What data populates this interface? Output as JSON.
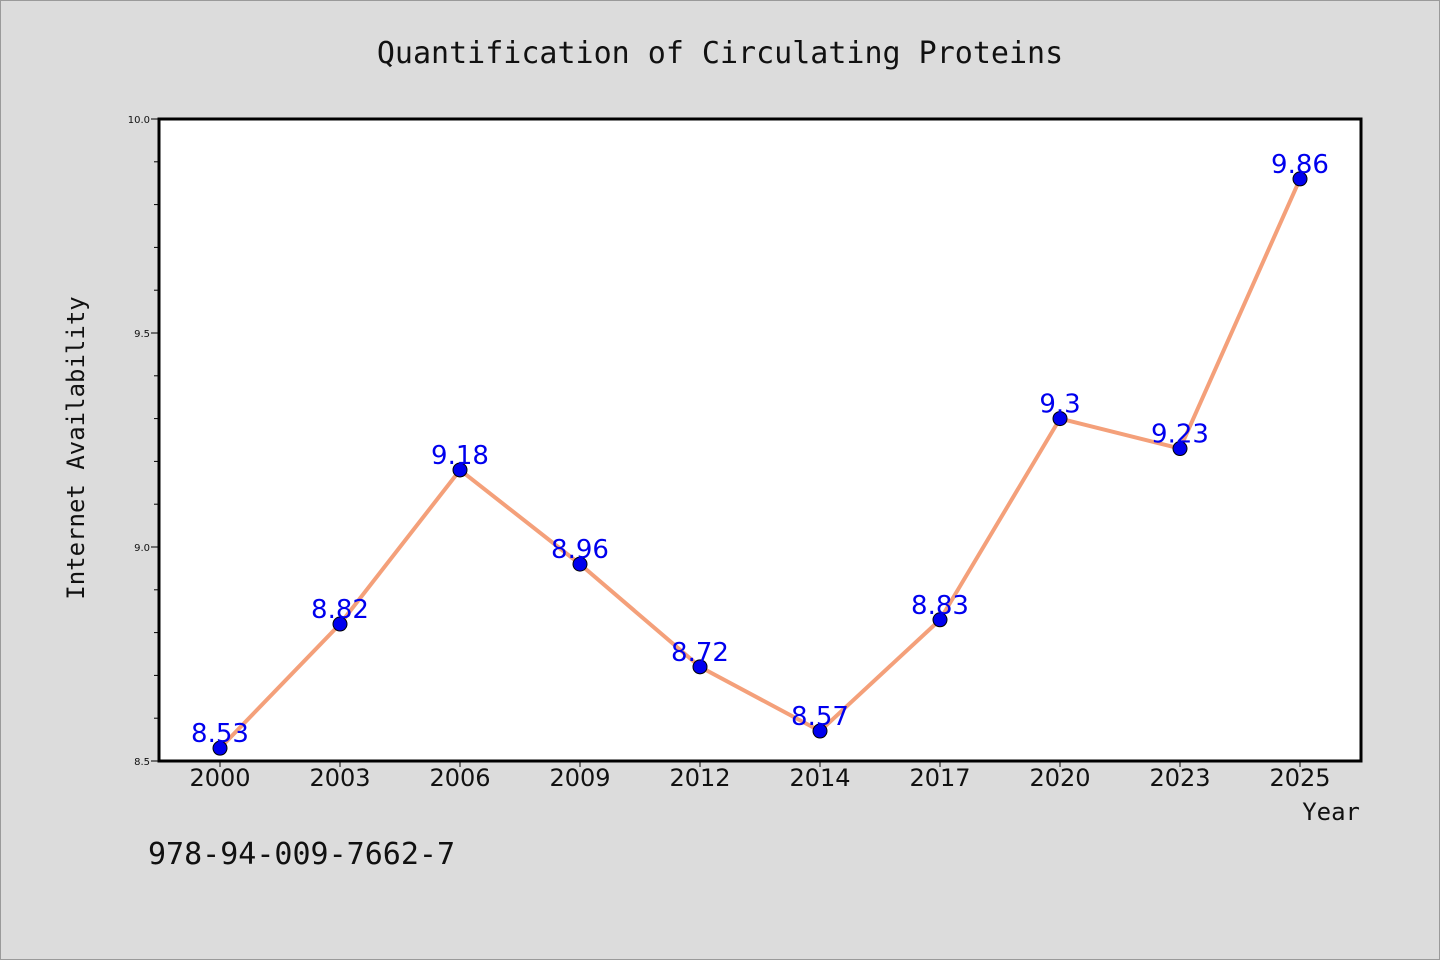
{
  "chart_data": {
    "type": "line",
    "title": "Quantification of Circulating Proteins",
    "xlabel": "Year",
    "ylabel": "Internet Availability",
    "categories": [
      "2000",
      "2003",
      "2006",
      "2009",
      "2012",
      "2014",
      "2017",
      "2020",
      "2023",
      "2025"
    ],
    "series": [
      {
        "values": [
          8.53,
          8.82,
          9.18,
          8.96,
          8.72,
          8.57,
          8.83,
          9.3,
          9.23,
          9.86
        ],
        "labels": [
          "8.53",
          "8.82",
          "9.18",
          "8.96",
          "8.72",
          "8.57",
          "8.83",
          "9.3",
          "9.23",
          "9.86"
        ],
        "line_color": "#f4a07a",
        "marker_color": "#0000ee"
      }
    ],
    "ylim": [
      8.5,
      10.0
    ],
    "yticks": [
      "8.5",
      "9.0",
      "9.5",
      "10.0"
    ],
    "label_color": "#0000ee",
    "grid": false,
    "legend": "none"
  },
  "footer_text": "978-94-009-7662-7"
}
